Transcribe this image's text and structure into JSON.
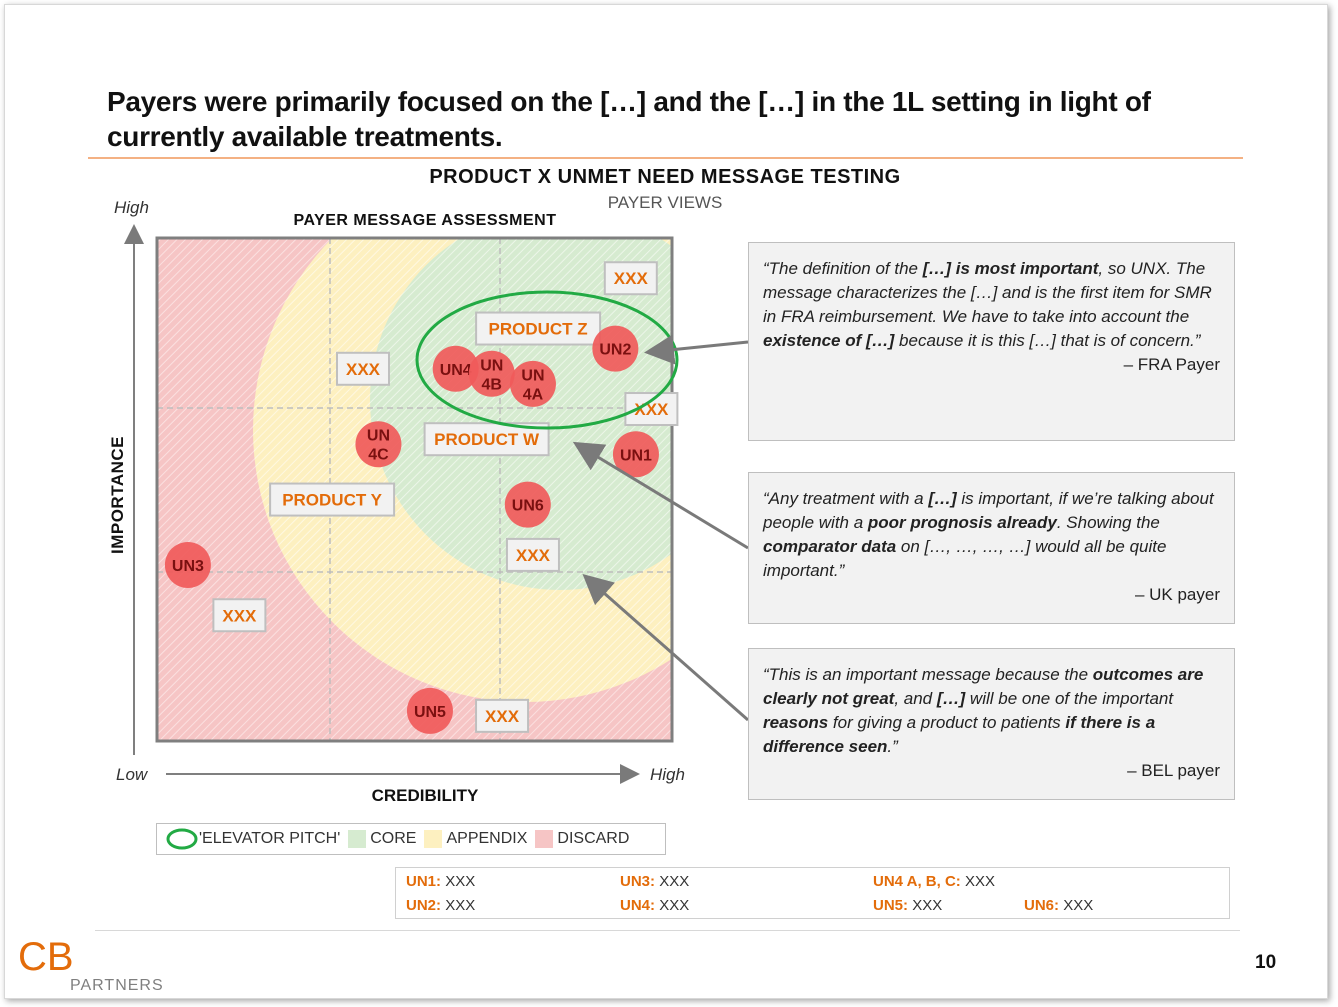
{
  "slide": {
    "title": "Payers were primarily focused on the […] and the […] in the 1L setting in light of currently available treatments.",
    "page_number": "10"
  },
  "chart_header": {
    "title": "PRODUCT X UNMET NEED MESSAGE TESTING",
    "subtitle": "PAYER VIEWS",
    "plot_title": "PAYER MESSAGE ASSESSMENT"
  },
  "axes": {
    "y_label": "IMPORTANCE",
    "x_label": "CREDIBILITY",
    "y_high": "High",
    "x_low": "Low",
    "x_high": "High"
  },
  "colors": {
    "accent": "#e36c0a",
    "bubble": "#f05a5a",
    "core": "#d9ead3",
    "appendix": "#fdf2c8",
    "discard": "#f6c5c5",
    "elevator": "#22aa44",
    "arrow": "#7a7a7a"
  },
  "chart_data": {
    "type": "scatter",
    "title": "PAYER MESSAGE ASSESSMENT",
    "xlabel": "CREDIBILITY",
    "ylabel": "IMPORTANCE",
    "xlim": [
      0,
      10
    ],
    "ylim": [
      0,
      10
    ],
    "zones": [
      "CORE",
      "APPENDIX",
      "DISCARD"
    ],
    "unmet_needs": [
      {
        "label": "UN1",
        "x": 9.3,
        "y": 5.7
      },
      {
        "label": "UN2",
        "x": 8.9,
        "y": 7.8
      },
      {
        "label": "UN3",
        "x": 0.6,
        "y": 3.5
      },
      {
        "label": "UN4",
        "x": 5.8,
        "y": 7.4
      },
      {
        "label": "UN\n4B",
        "x": 6.5,
        "y": 7.3
      },
      {
        "label": "UN\n4A",
        "x": 7.3,
        "y": 7.1
      },
      {
        "label": "UN\n4C",
        "x": 4.3,
        "y": 5.9
      },
      {
        "label": "UN5",
        "x": 5.3,
        "y": 0.6
      },
      {
        "label": "UN6",
        "x": 7.2,
        "y": 4.7
      }
    ],
    "products": [
      {
        "label": "XXX",
        "x": 9.2,
        "y": 9.2
      },
      {
        "label": "PRODUCT Z",
        "x": 7.4,
        "y": 8.2
      },
      {
        "label": "XXX",
        "x": 4.0,
        "y": 7.4
      },
      {
        "label": "XXX",
        "x": 9.6,
        "y": 6.6
      },
      {
        "label": "PRODUCT W",
        "x": 6.4,
        "y": 6.0
      },
      {
        "label": "PRODUCT Y",
        "x": 3.4,
        "y": 4.8
      },
      {
        "label": "XXX",
        "x": 7.3,
        "y": 3.7
      },
      {
        "label": "XXX",
        "x": 1.6,
        "y": 2.5
      },
      {
        "label": "XXX",
        "x": 6.7,
        "y": 0.5
      }
    ]
  },
  "quotes": [
    {
      "html": "“The definition of the <b>[…] is most important</b>, so UNX. The message characterizes the […] and is the first item for SMR in FRA reimbursement. We have to take into account the <b>existence of […]</b> because it is this […] that is of concern.”",
      "attribution": "– FRA Payer"
    },
    {
      "html": "“Any treatment with a <b>[…]</b> is important, if we’re talking about people with a <b>poor prognosis already</b>. Showing the <b>comparator data</b> on […, …, …, …] would all be quite important.”",
      "attribution": "– UK payer"
    },
    {
      "html": "“This is an important message because the <b>outcomes are clearly not great</b>, and <b>[…]</b> will be one of the important <b>reasons</b> for giving a product to patients <b>if there is a difference seen</b>.”",
      "attribution": "– BEL payer"
    }
  ],
  "legend": {
    "elevator": "'ELEVATOR PITCH'",
    "core": "CORE",
    "appendix": "APPENDIX",
    "discard": "DISCARD"
  },
  "un_table": [
    {
      "key": "UN1:",
      "value": "XXX"
    },
    {
      "key": "UN2:",
      "value": "XXX"
    },
    {
      "key": "UN3:",
      "value": "XXX"
    },
    {
      "key": "UN4:",
      "value": "XXX"
    },
    {
      "key": "UN4 A, B, C:",
      "value": "XXX"
    },
    {
      "key": "UN5:",
      "value": "XXX"
    },
    {
      "key": "UN6:",
      "value": "XXX"
    }
  ],
  "logo": {
    "letters": "CB",
    "word": "PARTNERS"
  }
}
